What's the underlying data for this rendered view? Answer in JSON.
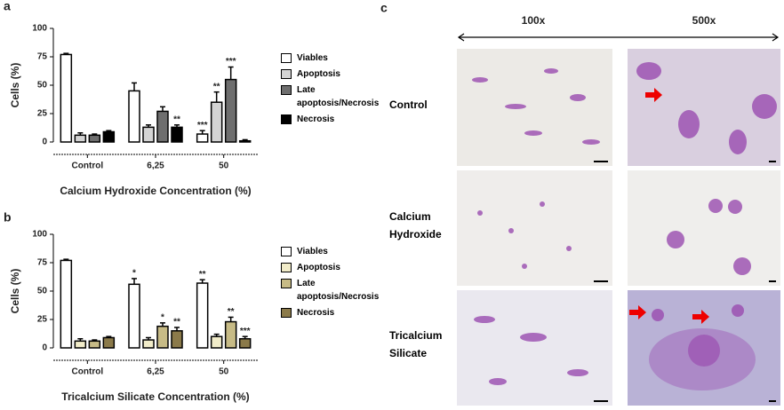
{
  "panel_labels": [
    "a",
    "b",
    "c"
  ],
  "chart_data": [
    {
      "type": "bar",
      "y_label": "Cells (%)",
      "x_label": "Calcium Hydroxide Concentration (%)",
      "categories": [
        "Control",
        "6,25",
        "50"
      ],
      "ylim": [
        0,
        100
      ],
      "yticks": [
        0,
        25,
        50,
        75,
        100
      ],
      "series": [
        {
          "name": "Viables",
          "color": "#ffffff",
          "values": [
            77,
            45,
            7
          ],
          "errors": [
            1,
            7,
            3
          ],
          "labels": [
            null,
            null,
            "***"
          ]
        },
        {
          "name": "Apoptosis",
          "color": "#d4d4d4",
          "values": [
            6,
            13,
            35
          ],
          "errors": [
            2,
            2,
            9
          ],
          "labels": [
            null,
            null,
            "**"
          ]
        },
        {
          "name": "Late apoptosis/Necrosis",
          "color": "#6e6e6e",
          "values": [
            6,
            27,
            55
          ],
          "errors": [
            1,
            4,
            11
          ],
          "labels": [
            null,
            null,
            "***"
          ]
        },
        {
          "name": "Necrosis",
          "color": "#000000",
          "values": [
            9,
            13,
            1
          ],
          "errors": [
            1,
            2,
            1
          ],
          "labels": [
            null,
            "**",
            null
          ]
        }
      ]
    },
    {
      "type": "bar",
      "y_label": "Cells (%)",
      "x_label": "Tricalcium Silicate Concentration (%)",
      "categories": [
        "Control",
        "6,25",
        "50"
      ],
      "ylim": [
        0,
        100
      ],
      "yticks": [
        0,
        25,
        50,
        75,
        100
      ],
      "series": [
        {
          "name": "Viables",
          "color": "#ffffff",
          "values": [
            77,
            56,
            57
          ],
          "errors": [
            1,
            5,
            3
          ],
          "labels": [
            null,
            "*",
            "**"
          ]
        },
        {
          "name": "Apoptosis",
          "color": "#f1ecc9",
          "values": [
            6,
            7,
            10
          ],
          "errors": [
            2,
            2,
            2
          ],
          "labels": [
            null,
            null,
            null
          ]
        },
        {
          "name": "Late apoptosis/Necrosis",
          "color": "#c7bb86",
          "values": [
            6,
            19,
            23
          ],
          "errors": [
            1,
            3,
            4
          ],
          "labels": [
            null,
            "*",
            "**"
          ]
        },
        {
          "name": "Necrosis",
          "color": "#8b7a4a",
          "values": [
            9,
            15,
            8
          ],
          "errors": [
            1,
            3,
            2
          ],
          "labels": [
            null,
            "**",
            "***"
          ]
        }
      ]
    }
  ],
  "micrographs": {
    "magnifications": [
      "100x",
      "500x"
    ],
    "rows": [
      "Control",
      "Calcium Hydroxide",
      "Tricalcium Silicate"
    ]
  }
}
